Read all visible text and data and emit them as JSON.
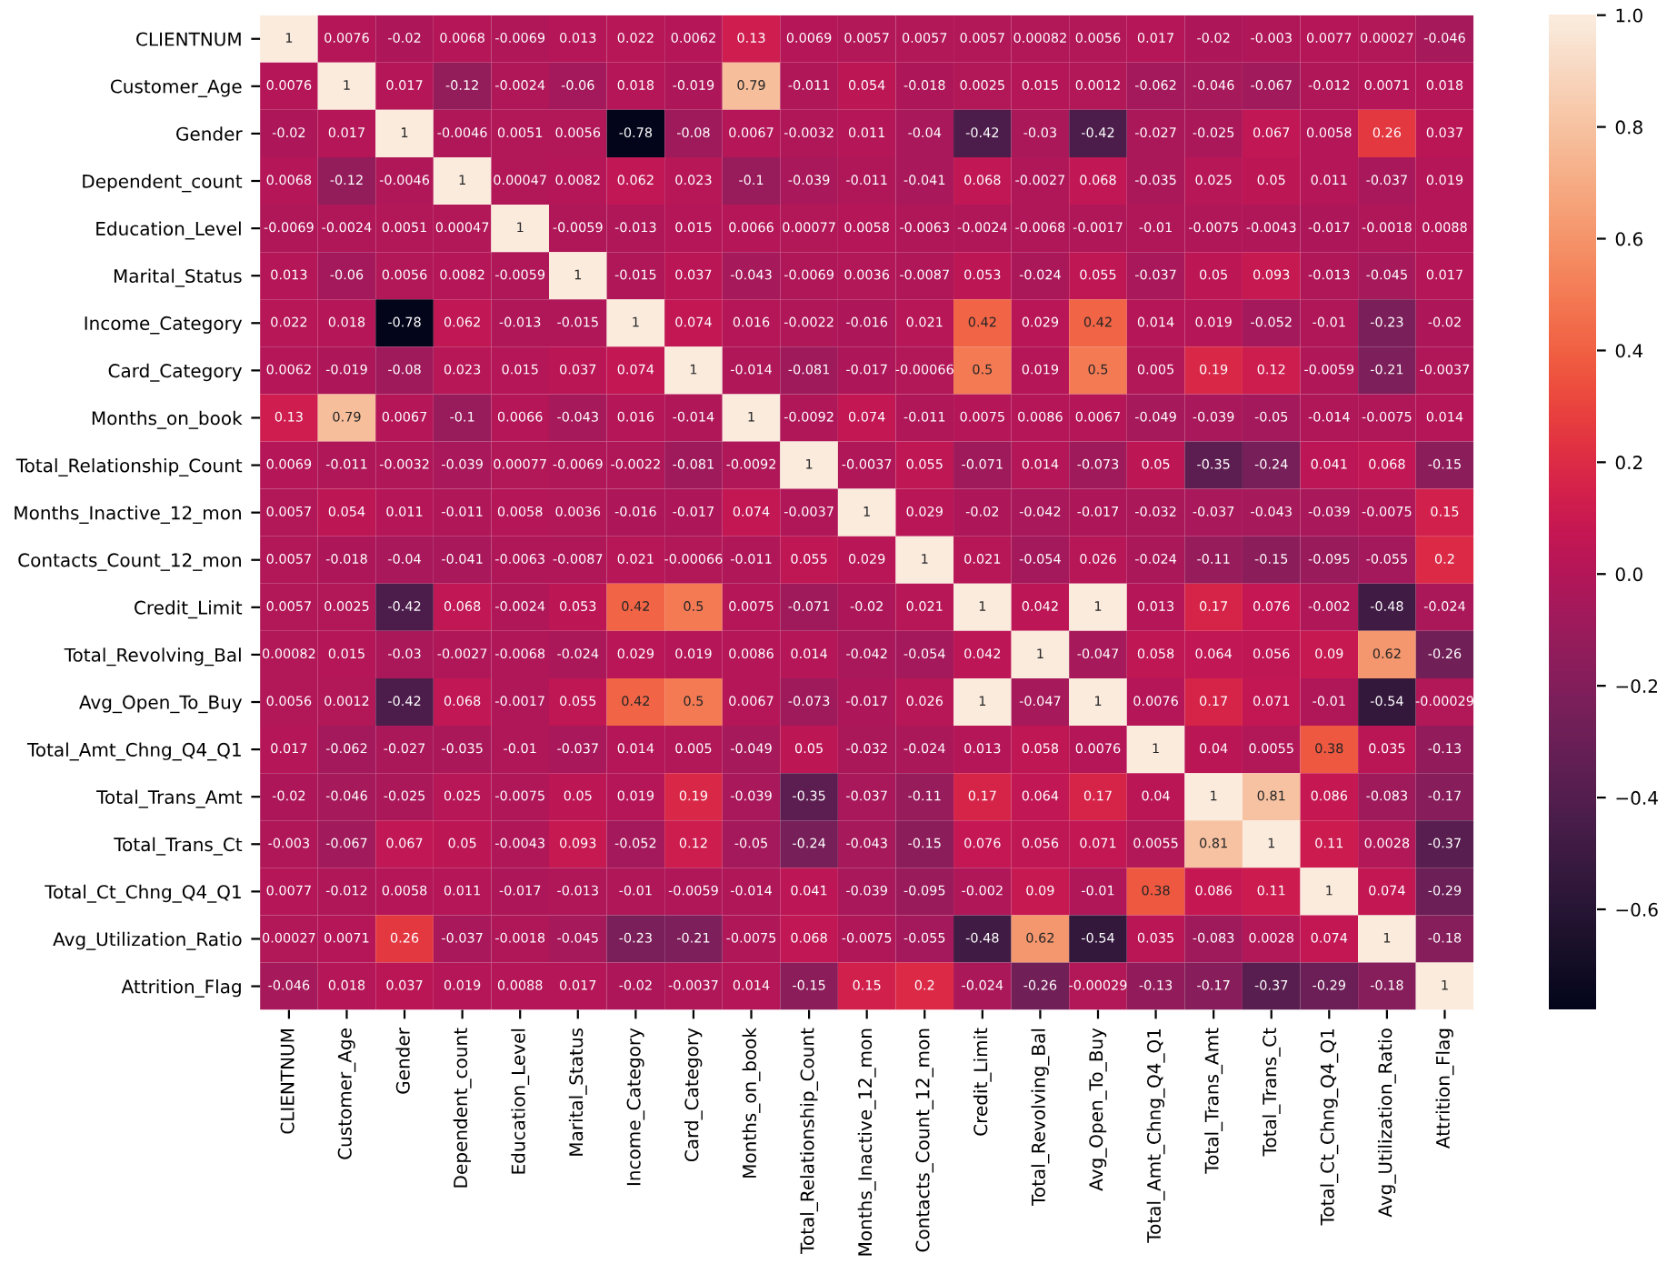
{
  "chart_data": {
    "type": "heatmap",
    "categories": [
      "CLIENTNUM",
      "Customer_Age",
      "Gender",
      "Dependent_count",
      "Education_Level",
      "Marital_Status",
      "Income_Category",
      "Card_Category",
      "Months_on_book",
      "Total_Relationship_Count",
      "Months_Inactive_12_mon",
      "Contacts_Count_12_mon",
      "Credit_Limit",
      "Total_Revolving_Bal",
      "Avg_Open_To_Buy",
      "Total_Amt_Chng_Q4_Q1",
      "Total_Trans_Amt",
      "Total_Trans_Ct",
      "Total_Ct_Chng_Q4_Q1",
      "Avg_Utilization_Ratio",
      "Attrition_Flag"
    ],
    "y_categories": [
      "CLIENTNUM",
      "Customer_Age",
      "Gender",
      "Dependent_count",
      "Education_Level",
      "Marital_Status",
      "Income_Category",
      "Card_Category",
      "Months_on_book",
      "Total_Relationship_Count",
      "Months_Inactive_12_mon",
      "Contacts_Count_12_mon",
      "Credit_Limit",
      "Total_Revolving_Bal",
      "Avg_Open_To_Buy",
      "Total_Amt_Chng_Q4_Q1",
      "Total_Trans_Amt",
      "Total_Trans_Ct",
      "Total_Ct_Chng_Q4_Q1",
      "Avg_Utilization_Ratio",
      "Attrition_Flag"
    ],
    "cells": [
      [
        1,
        0.0076,
        -0.02,
        0.0068,
        -0.0069,
        0.013,
        0.022,
        0.0062,
        0.13,
        0.0069,
        0.0057,
        0.0057,
        0.0057,
        0.00082,
        0.0056,
        0.017,
        -0.02,
        -0.003,
        0.0077,
        0.00027,
        -0.046
      ],
      [
        0.0076,
        1,
        0.017,
        -0.12,
        -0.0024,
        -0.06,
        0.018,
        -0.019,
        0.79,
        -0.011,
        0.054,
        -0.018,
        0.0025,
        0.015,
        0.0012,
        -0.062,
        -0.046,
        -0.067,
        -0.012,
        0.0071,
        0.018
      ],
      [
        -0.02,
        0.017,
        1,
        -0.0046,
        0.0051,
        0.0056,
        -0.78,
        -0.08,
        0.0067,
        -0.0032,
        0.011,
        -0.04,
        -0.42,
        -0.03,
        -0.42,
        -0.027,
        -0.025,
        0.067,
        0.0058,
        0.26,
        0.037
      ],
      [
        0.0068,
        -0.12,
        -0.0046,
        1,
        0.00047,
        0.0082,
        0.062,
        0.023,
        -0.1,
        -0.039,
        -0.011,
        -0.041,
        0.068,
        -0.0027,
        0.068,
        -0.035,
        0.025,
        0.05,
        0.011,
        -0.037,
        0.019
      ],
      [
        -0.0069,
        -0.0024,
        0.0051,
        0.00047,
        1,
        -0.0059,
        -0.013,
        0.015,
        0.0066,
        0.00077,
        0.0058,
        -0.0063,
        -0.0024,
        -0.0068,
        -0.0017,
        -0.01,
        -0.0075,
        -0.0043,
        -0.017,
        -0.0018,
        0.0088
      ],
      [
        0.013,
        -0.06,
        0.0056,
        0.0082,
        -0.0059,
        1,
        -0.015,
        0.037,
        -0.043,
        -0.0069,
        0.0036,
        -0.0087,
        0.053,
        -0.024,
        0.055,
        -0.037,
        0.05,
        0.093,
        -0.013,
        -0.045,
        0.017
      ],
      [
        0.022,
        0.018,
        -0.78,
        0.062,
        -0.013,
        -0.015,
        1,
        0.074,
        0.016,
        -0.0022,
        -0.016,
        0.021,
        0.42,
        0.029,
        0.42,
        0.014,
        0.019,
        -0.052,
        -0.01,
        -0.23,
        -0.02
      ],
      [
        0.0062,
        -0.019,
        -0.08,
        0.023,
        0.015,
        0.037,
        0.074,
        1,
        -0.014,
        -0.081,
        -0.017,
        -0.00066,
        0.5,
        0.019,
        0.5,
        0.005,
        0.19,
        0.12,
        -0.0059,
        -0.21,
        -0.0037
      ],
      [
        0.13,
        0.79,
        0.0067,
        -0.1,
        0.0066,
        -0.043,
        0.016,
        -0.014,
        1,
        -0.0092,
        0.074,
        -0.011,
        0.0075,
        0.0086,
        0.0067,
        -0.049,
        -0.039,
        -0.05,
        -0.014,
        -0.0075,
        0.014
      ],
      [
        0.0069,
        -0.011,
        -0.0032,
        -0.039,
        0.00077,
        -0.0069,
        -0.0022,
        -0.081,
        -0.0092,
        1,
        -0.0037,
        0.055,
        -0.071,
        0.014,
        -0.073,
        0.05,
        -0.35,
        -0.24,
        0.041,
        0.068,
        -0.15
      ],
      [
        0.0057,
        0.054,
        0.011,
        -0.011,
        0.0058,
        0.0036,
        -0.016,
        -0.017,
        0.074,
        -0.0037,
        1,
        0.029,
        -0.02,
        -0.042,
        -0.017,
        -0.032,
        -0.037,
        -0.043,
        -0.039,
        -0.0075,
        0.15
      ],
      [
        0.0057,
        -0.018,
        -0.04,
        -0.041,
        -0.0063,
        -0.0087,
        0.021,
        -0.00066,
        -0.011,
        0.055,
        0.029,
        1,
        0.021,
        -0.054,
        0.026,
        -0.024,
        -0.11,
        -0.15,
        -0.095,
        -0.055,
        0.2
      ],
      [
        0.0057,
        0.0025,
        -0.42,
        0.068,
        -0.0024,
        0.053,
        0.42,
        0.5,
        0.0075,
        -0.071,
        -0.02,
        0.021,
        1,
        0.042,
        1,
        0.013,
        0.17,
        0.076,
        -0.002,
        -0.48,
        -0.024
      ],
      [
        0.00082,
        0.015,
        -0.03,
        -0.0027,
        -0.0068,
        -0.024,
        0.029,
        0.019,
        0.0086,
        0.014,
        -0.042,
        -0.054,
        0.042,
        1,
        -0.047,
        0.058,
        0.064,
        0.056,
        0.09,
        0.62,
        -0.26
      ],
      [
        0.0056,
        0.0012,
        -0.42,
        0.068,
        -0.0017,
        0.055,
        0.42,
        0.5,
        0.0067,
        -0.073,
        -0.017,
        0.026,
        1,
        -0.047,
        1,
        0.0076,
        0.17,
        0.071,
        -0.01,
        -0.54,
        -0.00029
      ],
      [
        0.017,
        -0.062,
        -0.027,
        -0.035,
        -0.01,
        -0.037,
        0.014,
        0.005,
        -0.049,
        0.05,
        -0.032,
        -0.024,
        0.013,
        0.058,
        0.0076,
        1,
        0.04,
        0.0055,
        0.38,
        0.035,
        -0.13
      ],
      [
        -0.02,
        -0.046,
        -0.025,
        0.025,
        -0.0075,
        0.05,
        0.019,
        0.19,
        -0.039,
        -0.35,
        -0.037,
        -0.11,
        0.17,
        0.064,
        0.17,
        0.04,
        1,
        0.81,
        0.086,
        -0.083,
        -0.17
      ],
      [
        -0.003,
        -0.067,
        0.067,
        0.05,
        -0.0043,
        0.093,
        -0.052,
        0.12,
        -0.05,
        -0.24,
        -0.043,
        -0.15,
        0.076,
        0.056,
        0.071,
        0.0055,
        0.81,
        1,
        0.11,
        0.0028,
        -0.37
      ],
      [
        0.0077,
        -0.012,
        0.0058,
        0.011,
        -0.017,
        -0.013,
        -0.01,
        -0.0059,
        -0.014,
        0.041,
        -0.039,
        -0.095,
        -0.002,
        0.09,
        -0.01,
        0.38,
        0.086,
        0.11,
        1,
        0.074,
        -0.29
      ],
      [
        0.00027,
        0.0071,
        0.26,
        -0.037,
        -0.0018,
        -0.045,
        -0.23,
        -0.21,
        -0.0075,
        0.068,
        -0.0075,
        -0.055,
        -0.48,
        0.62,
        -0.54,
        0.035,
        -0.083,
        0.0028,
        0.074,
        1,
        -0.18
      ],
      [
        -0.046,
        0.018,
        0.037,
        0.019,
        0.0088,
        0.017,
        -0.02,
        -0.0037,
        0.014,
        -0.15,
        0.15,
        0.2,
        -0.024,
        -0.26,
        -0.00029,
        -0.13,
        -0.17,
        -0.37,
        -0.29,
        -0.18,
        1
      ]
    ],
    "data_labels": true,
    "clim": [
      -0.78,
      1
    ],
    "cticks": [
      -0.6,
      -0.4,
      -0.2,
      {
        "value": 0,
        "label": "0.0"
      },
      0.2,
      0.4,
      0.6,
      0.8,
      {
        "value": 1,
        "label": "1.0"
      }
    ],
    "grid": false
  }
}
